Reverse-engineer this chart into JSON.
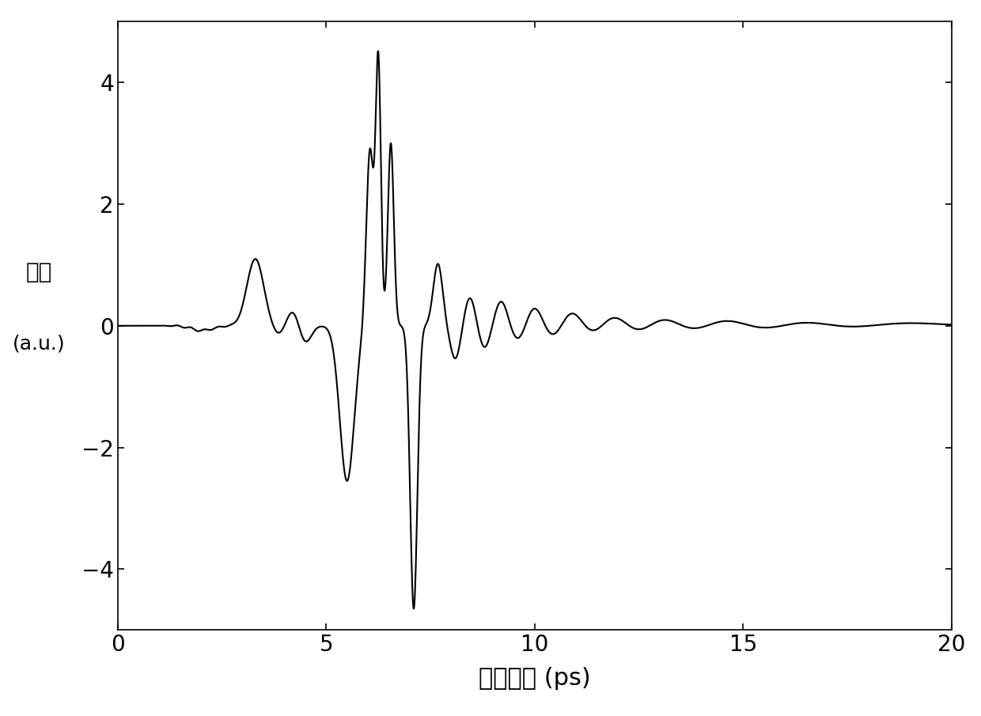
{
  "xlabel": "时间延迟 (ps)",
  "ylabel_line1": "振幅",
  "ylabel_line2": "(a.u.)",
  "xlim": [
    0,
    20
  ],
  "ylim": [
    -5,
    5
  ],
  "xticks": [
    0,
    5,
    10,
    15,
    20
  ],
  "yticks": [
    -4,
    -2,
    0,
    2,
    4
  ],
  "line_color": "#000000",
  "line_width": 1.5,
  "background_color": "#ffffff",
  "xlabel_fontsize": 22,
  "ylabel_fontsize": 20,
  "tick_fontsize": 20
}
